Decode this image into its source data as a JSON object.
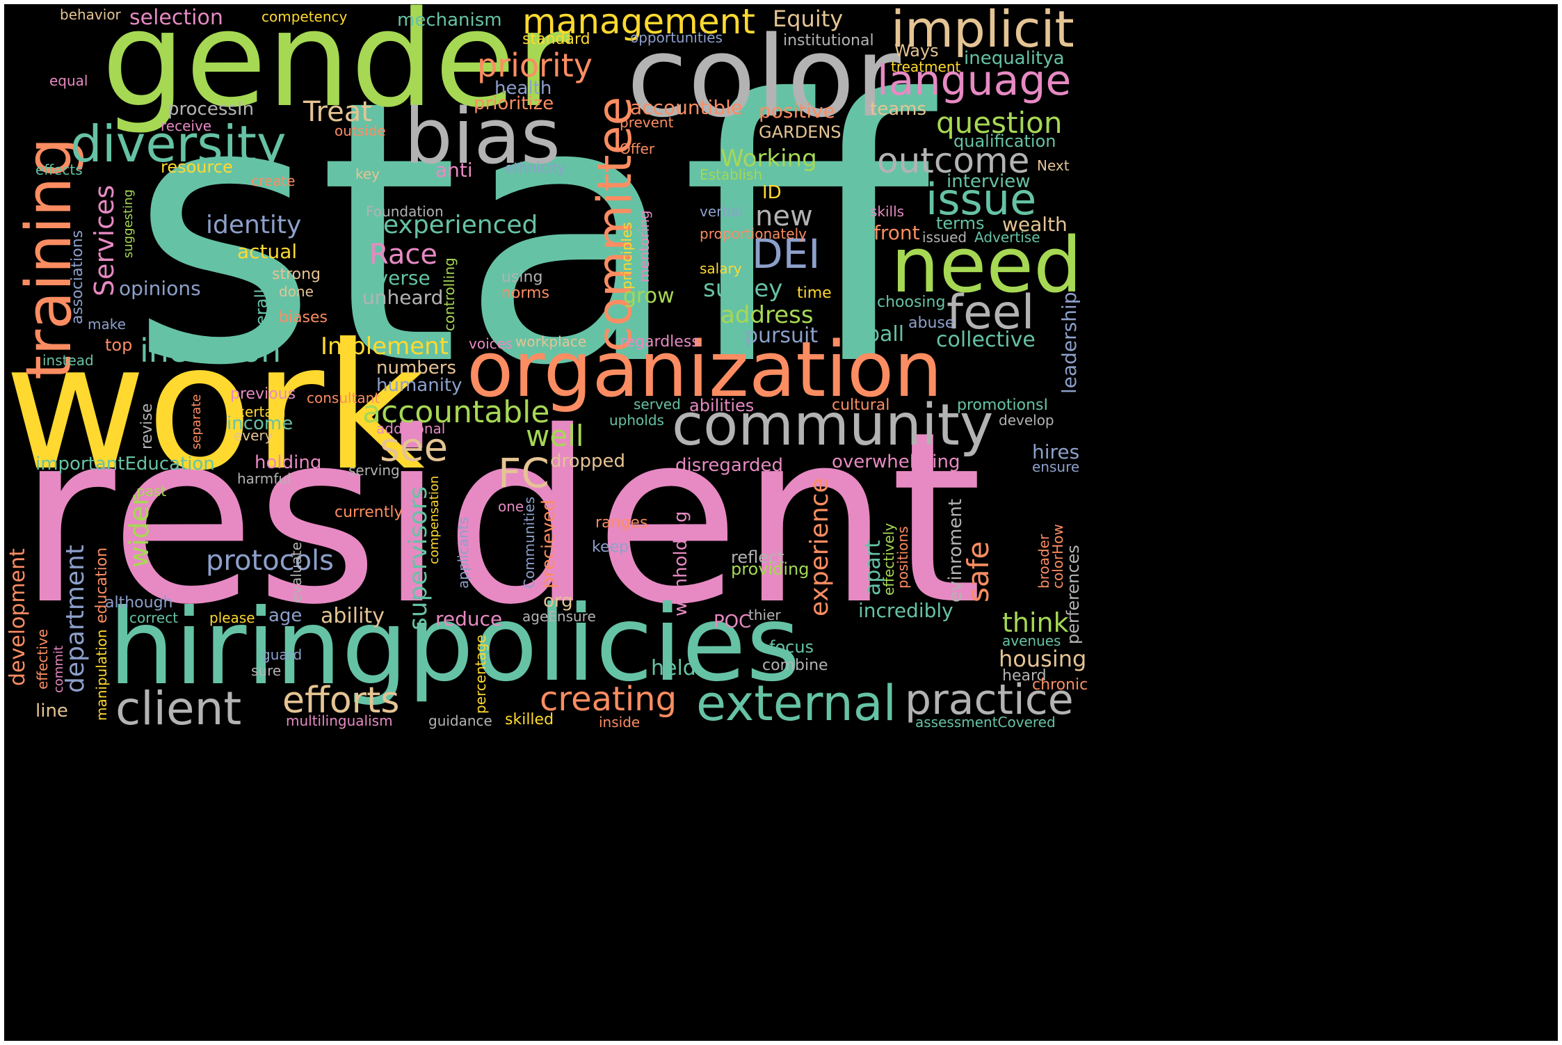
{
  "palette": {
    "teal": "#66c2a5",
    "orange": "#fc8d62",
    "blue": "#8da0cb",
    "pink": "#e78ac3",
    "green": "#a6d854",
    "yellow": "#ffd92f",
    "tan": "#e5c494",
    "gray": "#b3b3b3"
  },
  "words": [
    {
      "text": "staff",
      "color": "teal"
    },
    {
      "text": "resident",
      "color": "pink"
    },
    {
      "text": "work",
      "color": "yellow"
    },
    {
      "text": "gender",
      "color": "green"
    },
    {
      "text": "color",
      "color": "gray"
    },
    {
      "text": "hiring",
      "color": "teal"
    },
    {
      "text": "policies",
      "color": "teal"
    },
    {
      "text": "organization",
      "color": "orange"
    },
    {
      "text": "community",
      "color": "gray"
    },
    {
      "text": "bias",
      "color": "gray"
    },
    {
      "text": "need",
      "color": "green"
    },
    {
      "text": "training",
      "color": "orange"
    },
    {
      "text": "diversity",
      "color": "teal"
    },
    {
      "text": "implicit",
      "color": "tan"
    },
    {
      "text": "management",
      "color": "yellow"
    },
    {
      "text": "language",
      "color": "pink"
    },
    {
      "text": "external",
      "color": "teal"
    },
    {
      "text": "practice",
      "color": "gray"
    },
    {
      "text": "client",
      "color": "gray"
    },
    {
      "text": "efforts",
      "color": "tan"
    },
    {
      "text": "creating",
      "color": "orange"
    },
    {
      "text": "committee",
      "color": "orange"
    },
    {
      "text": "outcome",
      "color": "gray"
    },
    {
      "text": "issue",
      "color": "teal"
    },
    {
      "text": "feel",
      "color": "gray"
    },
    {
      "text": "DEI",
      "color": "blue"
    },
    {
      "text": "inclusion",
      "color": "teal"
    },
    {
      "text": "accountable",
      "color": "green"
    },
    {
      "text": "see",
      "color": "tan"
    },
    {
      "text": "FC",
      "color": "tan"
    },
    {
      "text": "priority",
      "color": "orange"
    },
    {
      "text": "question",
      "color": "green"
    },
    {
      "text": "Treat",
      "color": "tan"
    },
    {
      "text": "Race",
      "color": "pink"
    },
    {
      "text": "new",
      "color": "gray"
    },
    {
      "text": "experienced",
      "color": "teal"
    },
    {
      "text": "identity",
      "color": "blue"
    },
    {
      "text": "Services",
      "color": "pink"
    },
    {
      "text": "Working",
      "color": "green"
    },
    {
      "text": "address",
      "color": "green"
    },
    {
      "text": "survey",
      "color": "teal"
    },
    {
      "text": "Implement",
      "color": "yellow"
    },
    {
      "text": "well",
      "color": "green"
    },
    {
      "text": "protocols",
      "color": "blue"
    },
    {
      "text": "supervisors",
      "color": "teal"
    },
    {
      "text": "experience",
      "color": "orange"
    },
    {
      "text": "safe",
      "color": "orange"
    },
    {
      "text": "think",
      "color": "green"
    },
    {
      "text": "housing",
      "color": "tan"
    },
    {
      "text": "department",
      "color": "blue"
    },
    {
      "text": "development",
      "color": "orange"
    },
    {
      "text": "wider",
      "color": "green"
    },
    {
      "text": "leadership",
      "color": "blue"
    },
    {
      "text": "Equity",
      "color": "tan"
    },
    {
      "text": "selection",
      "color": "pink"
    },
    {
      "text": "mechanism",
      "color": "teal"
    },
    {
      "text": "competency",
      "color": "yellow"
    },
    {
      "text": "behavior",
      "color": "tan"
    },
    {
      "text": "standard",
      "color": "yellow"
    },
    {
      "text": "opportunities",
      "color": "blue"
    },
    {
      "text": "institutional",
      "color": "gray"
    },
    {
      "text": "Ways",
      "color": "tan"
    },
    {
      "text": "inequalitya",
      "color": "teal"
    },
    {
      "text": "treatment",
      "color": "yellow"
    },
    {
      "text": "equal",
      "color": "pink"
    },
    {
      "text": "health",
      "color": "blue"
    },
    {
      "text": "prioritize",
      "color": "orange"
    },
    {
      "text": "processIn",
      "color": "gray"
    },
    {
      "text": "accountible",
      "color": "orange"
    },
    {
      "text": "positive",
      "color": "orange"
    },
    {
      "text": "teams",
      "color": "tan"
    },
    {
      "text": "receive",
      "color": "pink"
    },
    {
      "text": "outside",
      "color": "orange"
    },
    {
      "text": "prevent",
      "color": "orange"
    },
    {
      "text": "GARDENS",
      "color": "tan"
    },
    {
      "text": "qualification",
      "color": "teal"
    },
    {
      "text": "Offer",
      "color": "orange"
    },
    {
      "text": "effects",
      "color": "teal"
    },
    {
      "text": "resource",
      "color": "yellow"
    },
    {
      "text": "anti",
      "color": "pink"
    },
    {
      "text": "ethnicity",
      "color": "blue"
    },
    {
      "text": "create",
      "color": "orange"
    },
    {
      "text": "key",
      "color": "tan"
    },
    {
      "text": "Establish",
      "color": "green"
    },
    {
      "text": "Next",
      "color": "tan"
    },
    {
      "text": "interview",
      "color": "teal"
    },
    {
      "text": "ID",
      "color": "yellow"
    },
    {
      "text": "Foundation",
      "color": "gray"
    },
    {
      "text": "verbal",
      "color": "blue"
    },
    {
      "text": "skills",
      "color": "pink"
    },
    {
      "text": "terms",
      "color": "teal"
    },
    {
      "text": "wealth",
      "color": "tan"
    },
    {
      "text": "front",
      "color": "orange"
    },
    {
      "text": "issued",
      "color": "gray"
    },
    {
      "text": "Advertise",
      "color": "teal"
    },
    {
      "text": "proportionately",
      "color": "orange"
    },
    {
      "text": "suggesting",
      "color": "green"
    },
    {
      "text": "associations",
      "color": "blue"
    },
    {
      "text": "actual",
      "color": "yellow"
    },
    {
      "text": "strong",
      "color": "tan"
    },
    {
      "text": "done",
      "color": "tan"
    },
    {
      "text": "opinions",
      "color": "blue"
    },
    {
      "text": "unheard",
      "color": "gray"
    },
    {
      "text": "diverse",
      "color": "teal"
    },
    {
      "text": "controlling",
      "color": "green"
    },
    {
      "text": "using",
      "color": "gray"
    },
    {
      "text": "norms",
      "color": "orange"
    },
    {
      "text": "principles",
      "color": "yellow"
    },
    {
      "text": "mentoring",
      "color": "pink"
    },
    {
      "text": "grow",
      "color": "green"
    },
    {
      "text": "salary",
      "color": "yellow"
    },
    {
      "text": "time",
      "color": "yellow"
    },
    {
      "text": "choosing",
      "color": "teal"
    },
    {
      "text": "abuse",
      "color": "blue"
    },
    {
      "text": "ball",
      "color": "teal"
    },
    {
      "text": "collective",
      "color": "teal"
    },
    {
      "text": "pursuit",
      "color": "blue"
    },
    {
      "text": "make",
      "color": "blue"
    },
    {
      "text": "biases",
      "color": "orange"
    },
    {
      "text": "Overall",
      "color": "teal"
    },
    {
      "text": "top",
      "color": "orange"
    },
    {
      "text": "instead",
      "color": "teal"
    },
    {
      "text": "voices",
      "color": "pink"
    },
    {
      "text": "workplace",
      "color": "tan"
    },
    {
      "text": "regardless",
      "color": "pink"
    },
    {
      "text": "numbers",
      "color": "tan"
    },
    {
      "text": "humanity",
      "color": "blue"
    },
    {
      "text": "previous",
      "color": "pink"
    },
    {
      "text": "consultant",
      "color": "orange"
    },
    {
      "text": "certain",
      "color": "yellow"
    },
    {
      "text": "income",
      "color": "teal"
    },
    {
      "text": "additional",
      "color": "pink"
    },
    {
      "text": "every",
      "color": "tan"
    },
    {
      "text": "separate",
      "color": "orange"
    },
    {
      "text": "revise",
      "color": "gray"
    },
    {
      "text": "served",
      "color": "teal"
    },
    {
      "text": "abilities",
      "color": "pink"
    },
    {
      "text": "cultural",
      "color": "orange"
    },
    {
      "text": "promotionsI",
      "color": "teal"
    },
    {
      "text": "upholds",
      "color": "teal"
    },
    {
      "text": "develop",
      "color": "gray"
    },
    {
      "text": "hires",
      "color": "blue"
    },
    {
      "text": "ensure",
      "color": "blue"
    },
    {
      "text": "importantEducation",
      "color": "teal"
    },
    {
      "text": "holding",
      "color": "pink"
    },
    {
      "text": "dropped",
      "color": "tan"
    },
    {
      "text": "disregarded",
      "color": "pink"
    },
    {
      "text": "overwhelming",
      "color": "pink"
    },
    {
      "text": "serving",
      "color": "gray"
    },
    {
      "text": "harmful",
      "color": "gray"
    },
    {
      "text": "past",
      "color": "green"
    },
    {
      "text": "compensation",
      "color": "yellow"
    },
    {
      "text": "currently",
      "color": "orange"
    },
    {
      "text": "one",
      "color": "pink"
    },
    {
      "text": "ranges",
      "color": "orange"
    },
    {
      "text": "keep",
      "color": "blue"
    },
    {
      "text": "applicants",
      "color": "blue"
    },
    {
      "text": "Communities",
      "color": "blue"
    },
    {
      "text": "precieved",
      "color": "orange"
    },
    {
      "text": "org",
      "color": "tan"
    },
    {
      "text": "withholding",
      "color": "pink"
    },
    {
      "text": "effectively",
      "color": "green"
    },
    {
      "text": "positions",
      "color": "orange"
    },
    {
      "text": "apart",
      "color": "teal"
    },
    {
      "text": "evinroment",
      "color": "gray"
    },
    {
      "text": "reflect",
      "color": "gray"
    },
    {
      "text": "providing",
      "color": "green"
    },
    {
      "text": "broader",
      "color": "orange"
    },
    {
      "text": "colorHow",
      "color": "orange"
    },
    {
      "text": "perferences",
      "color": "gray"
    },
    {
      "text": "education",
      "color": "orange"
    },
    {
      "text": "although",
      "color": "blue"
    },
    {
      "text": "evaluate",
      "color": "gray"
    },
    {
      "text": "age",
      "color": "blue"
    },
    {
      "text": "ability",
      "color": "tan"
    },
    {
      "text": "reduce",
      "color": "pink"
    },
    {
      "text": "ageEnsure",
      "color": "gray"
    },
    {
      "text": "POC",
      "color": "pink"
    },
    {
      "text": "thier",
      "color": "gray"
    },
    {
      "text": "incredibly",
      "color": "teal"
    },
    {
      "text": "correct",
      "color": "teal"
    },
    {
      "text": "please",
      "color": "yellow"
    },
    {
      "text": "effective",
      "color": "orange"
    },
    {
      "text": "commit",
      "color": "pink"
    },
    {
      "text": "manipulation",
      "color": "yellow"
    },
    {
      "text": "guard",
      "color": "blue"
    },
    {
      "text": "sure",
      "color": "gray"
    },
    {
      "text": "held",
      "color": "teal"
    },
    {
      "text": "percentage",
      "color": "yellow"
    },
    {
      "text": "focus",
      "color": "teal"
    },
    {
      "text": "combine",
      "color": "gray"
    },
    {
      "text": "avenues",
      "color": "teal"
    },
    {
      "text": "heard",
      "color": "gray"
    },
    {
      "text": "chronic",
      "color": "orange"
    },
    {
      "text": "line",
      "color": "tan"
    },
    {
      "text": "multilingualism",
      "color": "pink"
    },
    {
      "text": "guidance",
      "color": "gray"
    },
    {
      "text": "skilled",
      "color": "yellow"
    },
    {
      "text": "inside",
      "color": "orange"
    },
    {
      "text": "assessmentCovered",
      "color": "teal"
    }
  ]
}
